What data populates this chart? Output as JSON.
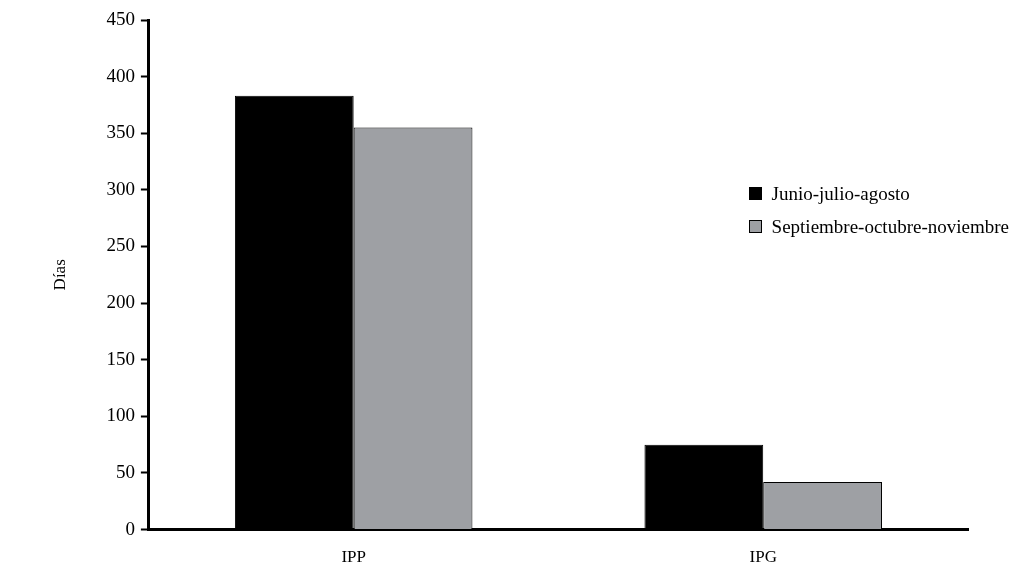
{
  "chart_data": {
    "type": "bar",
    "ylabel": "Días",
    "categories": [
      "IPP",
      "IPG"
    ],
    "series": [
      {
        "name": "Junio-julio-agosto",
        "color": "#000000",
        "values": [
          383,
          75
        ]
      },
      {
        "name": "Septiembre-octubre-noviembre",
        "color": "#9ea0a4",
        "values": [
          355,
          42
        ]
      }
    ],
    "ylim": [
      0,
      450
    ],
    "yticks": [
      0,
      50,
      100,
      150,
      200,
      250,
      300,
      350,
      400,
      450
    ],
    "grid": false,
    "legend": "right"
  }
}
